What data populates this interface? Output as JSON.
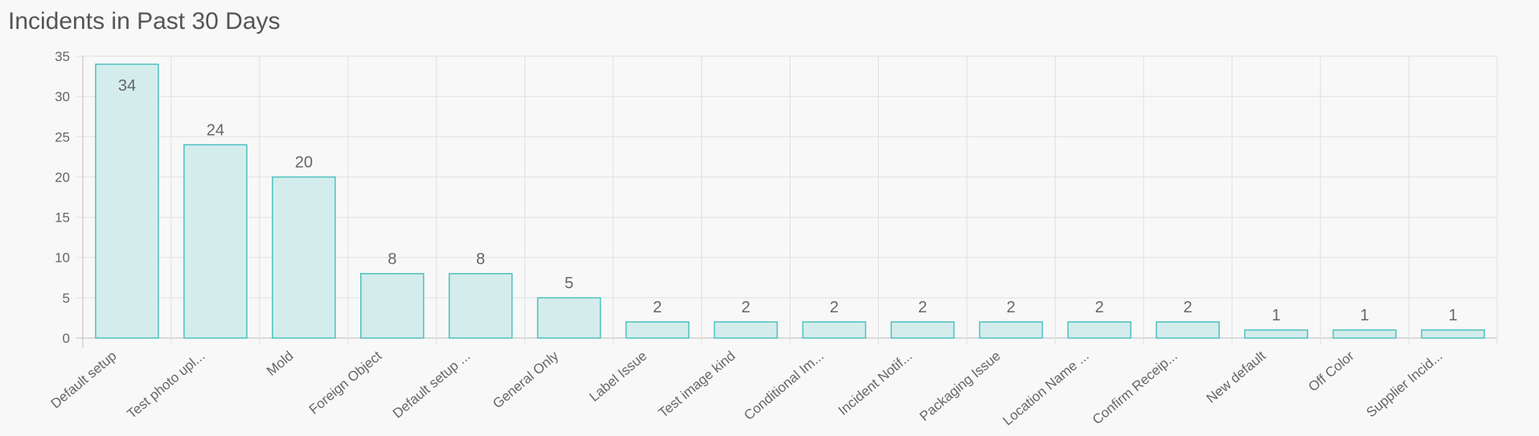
{
  "title": "Incidents in Past 30 Days",
  "chart_data": {
    "type": "bar",
    "title": "Incidents in Past 30 Days",
    "xlabel": "",
    "ylabel": "",
    "ylim": [
      0,
      35
    ],
    "yticks": [
      0,
      5,
      10,
      15,
      20,
      25,
      30,
      35
    ],
    "grid": true,
    "legend": "none",
    "categories": [
      "Default setup",
      "Test photo upl...",
      "Mold",
      "Foreign Object",
      "Default setup ...",
      "General Only",
      "Label Issue",
      "Test image kind",
      "Conditional Im...",
      "Incident Notif...",
      "Packaging Issue",
      "Location Name ...",
      "Confirm Receip...",
      "New default",
      "Off Color",
      "Supplier Incid..."
    ],
    "values": [
      34,
      24,
      20,
      8,
      8,
      5,
      2,
      2,
      2,
      2,
      2,
      2,
      2,
      1,
      1,
      1
    ],
    "data_labels": [
      "34",
      "24",
      "20",
      "8",
      "8",
      "5",
      "2",
      "2",
      "2",
      "2",
      "2",
      "2",
      "2",
      "1",
      "1",
      "1"
    ],
    "colors": {
      "bar_fill": "#d4ecec",
      "bar_stroke": "#4fc0c0",
      "grid": "#e0e0e0",
      "axis": "#bdbdbd",
      "text": "#666666"
    }
  }
}
